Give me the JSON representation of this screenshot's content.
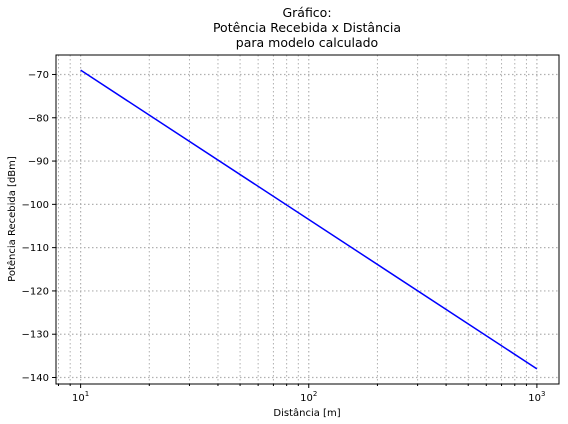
{
  "chart_data": {
    "type": "line",
    "title": [
      "Gráfico:",
      "Potência Recebida x Distância",
      "para modelo calculado"
    ],
    "xlabel": "Distância [m]",
    "ylabel": "Potência Recebida [dBm]",
    "xscale": "log",
    "xlim": [
      7.8,
      1250
    ],
    "ylim": [
      -141.5,
      -65.5
    ],
    "grid": true,
    "grid_style": "dotted",
    "x_ticks": [
      {
        "base": "10",
        "exp": "1"
      },
      {
        "base": "10",
        "exp": "2"
      },
      {
        "base": "10",
        "exp": "3"
      }
    ],
    "y_ticks": [
      "−70",
      "−80",
      "−90",
      "−100",
      "−110",
      "−120",
      "−130",
      "−140"
    ],
    "y_tick_values": [
      -70,
      -80,
      -90,
      -100,
      -110,
      -120,
      -130,
      -140
    ],
    "x_tick_values": [
      10,
      100,
      1000
    ],
    "series": [
      {
        "color": "#0000ff",
        "x": [
          10,
          1000
        ],
        "y": [
          -69,
          -138
        ]
      }
    ]
  }
}
